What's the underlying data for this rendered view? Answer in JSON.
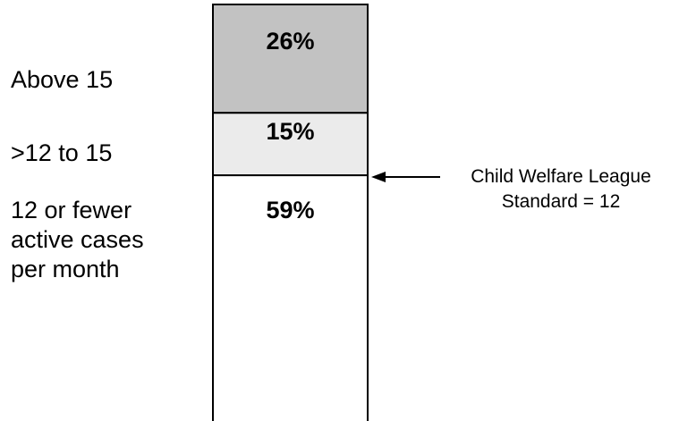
{
  "chart_data": {
    "type": "bar",
    "stacked": true,
    "categories": [
      "12 or fewer\nactive cases\nper month",
      ">12 to 15",
      "Above 15"
    ],
    "values": [
      59,
      15,
      26
    ],
    "value_labels": [
      "59%",
      "15%",
      "26%"
    ],
    "colors": [
      "#ffffff",
      "#ebebeb",
      "#c2c2c2"
    ],
    "annotation": {
      "text": "Child Welfare League\nStandard = 12",
      "points_to_boundary_after_category": 0
    },
    "title": "",
    "xlabel": "",
    "ylabel": ""
  }
}
